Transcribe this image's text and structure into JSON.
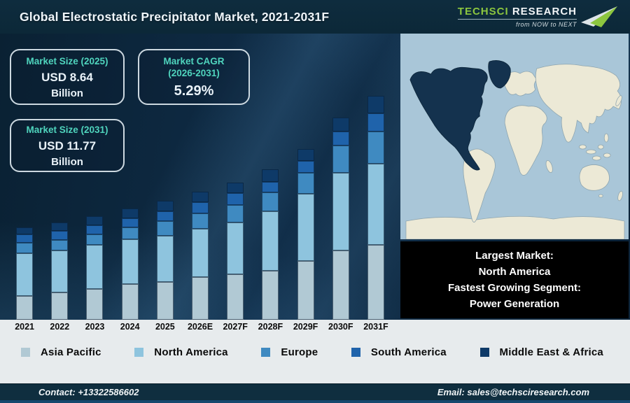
{
  "header": {
    "title": "Global Electrostatic Precipitator Market, 2021-2031F",
    "logo": {
      "brand_green": "TechSci",
      "brand_white": "Research",
      "tagline": "from NOW to NEXT",
      "brand_green_color": "#8cc63f"
    }
  },
  "stats": [
    {
      "label": "Market Size (2025)",
      "value": "USD 8.64",
      "unit": "Billion"
    },
    {
      "label": "Market CAGR",
      "label2": "(2026-2031)",
      "value": "5.29%"
    },
    {
      "label": "Market Size (2031)",
      "value": "USD 11.77",
      "unit": "Billion"
    }
  ],
  "chart_data": {
    "type": "bar",
    "stacked": true,
    "title": "Global Electrostatic Precipitator Market, 2021-2031F",
    "categories": [
      "2021",
      "2022",
      "2023",
      "2024",
      "2025",
      "2026E",
      "2027F",
      "2028F",
      "2029F",
      "2030F",
      "2031F"
    ],
    "series": [
      {
        "name": "Asia Pacific",
        "color": "#b1c9d4",
        "values": [
          34,
          39,
          44,
          51,
          54,
          61,
          65,
          70,
          84,
          99,
          107
        ]
      },
      {
        "name": "North America",
        "color": "#8ec4de",
        "values": [
          61,
          60,
          63,
          64,
          66,
          69,
          74,
          85,
          96,
          111,
          116
        ]
      },
      {
        "name": "Europe",
        "color": "#3f8ac1",
        "values": [
          15,
          15,
          15,
          17,
          21,
          22,
          25,
          27,
          30,
          39,
          46
        ]
      },
      {
        "name": "South America",
        "color": "#1f63ab",
        "values": [
          12,
          13,
          13,
          13,
          14,
          16,
          17,
          15,
          17,
          20,
          26
        ]
      },
      {
        "name": "Middle East & Africa",
        "color": "#0e3a68",
        "values": [
          10,
          12,
          13,
          14,
          15,
          15,
          15,
          18,
          17,
          20,
          25
        ]
      }
    ],
    "units": "relative visual bar height in px (chart shows no numeric axis)",
    "stack_order_bottom_to_top": [
      "Asia Pacific",
      "North America",
      "Europe",
      "South America",
      "Middle East & Africa"
    ],
    "annotations": {
      "market_size_2025": "USD 8.64 Billion",
      "market_size_2031": "USD 11.77 Billion",
      "cagr_2026_2031": "5.29%"
    },
    "legend_position": "bottom",
    "grid": false
  },
  "map": {
    "highlighted_region": "North America",
    "ocean_color": "#a9c6d8",
    "land_color": "#ece9d6",
    "highlight_color": "#14324e"
  },
  "callout": {
    "lines": [
      "Largest Market:",
      "North America",
      "Fastest Growing Segment:",
      "Power Generation"
    ]
  },
  "footer": {
    "contact": "Contact: +13322586602",
    "email": "Email: sales@techsciresearch.com"
  },
  "theme": {
    "accent_teal": "#4fd4bd",
    "header_bg": "#0e2c3e",
    "footer_bg": "#0f2e3f",
    "light_band_bg": "#e7ebed"
  }
}
